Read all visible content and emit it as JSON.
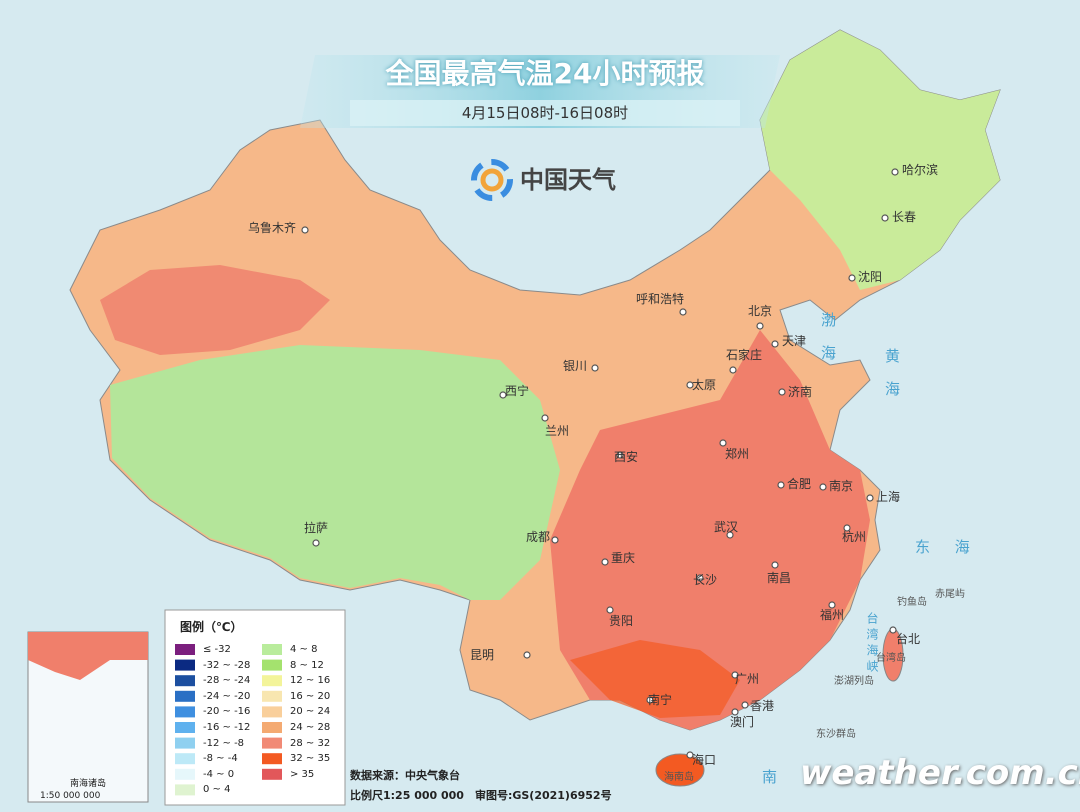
{
  "header": {
    "title": "全国最高气温24小时预报",
    "subtitle": "4月15日08时-16日08时",
    "logo": "中国天气"
  },
  "cities": [
    "乌鲁木齐",
    "哈尔滨",
    "长春",
    "沈阳",
    "呼和浩特",
    "北京",
    "天津",
    "石家庄",
    "太原",
    "济南",
    "银川",
    "西宁",
    "兰州",
    "西安",
    "郑州",
    "合肥",
    "南京",
    "上海",
    "拉萨",
    "成都",
    "武汉",
    "杭州",
    "重庆",
    "长沙",
    "南昌",
    "贵阳",
    "福州",
    "台北",
    "昆明",
    "广州",
    "南宁",
    "香港",
    "澳门",
    "海口"
  ],
  "seas": [
    "渤海",
    "黄海",
    "东 海",
    "南",
    "台湾海峡"
  ],
  "islands": [
    "钓鱼岛",
    "赤尾屿",
    "台湾岛",
    "澎湖列岛",
    "东沙群岛",
    "海南岛"
  ],
  "inset": {
    "label": "南海诸岛",
    "scale": "1:50 000 000"
  },
  "legend": {
    "title": "图例（℃）",
    "items": [
      {
        "label": "≤ -32",
        "color": "#7b1f7e"
      },
      {
        "label": "-32 ~ -28",
        "color": "#0b2a82"
      },
      {
        "label": "-28 ~ -24",
        "color": "#1c4fa0"
      },
      {
        "label": "-24 ~ -20",
        "color": "#2a6fc4"
      },
      {
        "label": "-20 ~ -16",
        "color": "#3f8fe0"
      },
      {
        "label": "-16 ~ -12",
        "color": "#5fb1ee"
      },
      {
        "label": "-12 ~ -8",
        "color": "#8fd0f0"
      },
      {
        "label": "-8 ~ -4",
        "color": "#bde9f7"
      },
      {
        "label": "-4 ~ 0",
        "color": "#e6f7fb"
      },
      {
        "label": "0 ~ 4",
        "color": "#dff3d0"
      },
      {
        "label": "4 ~ 8",
        "color": "#b9ec9c"
      },
      {
        "label": "8 ~ 12",
        "color": "#a4e26e"
      },
      {
        "label": "12 ~ 16",
        "color": "#f3f49a"
      },
      {
        "label": "16 ~ 20",
        "color": "#f8e6b0"
      },
      {
        "label": "20 ~ 24",
        "color": "#f9cf9b"
      },
      {
        "label": "24 ~ 28",
        "color": "#f4aa72"
      },
      {
        "label": "28 ~ 32",
        "color": "#f18a76"
      },
      {
        "label": "32 ~ 35",
        "color": "#f35a22"
      },
      {
        "label": "> 35",
        "color": "#e2575a"
      }
    ]
  },
  "footer": {
    "source": "数据来源：中央气象台",
    "scale": "比例尺1:25 000 000　审图号:GS(2021)6952号"
  },
  "watermark": "weather.com.cn"
}
